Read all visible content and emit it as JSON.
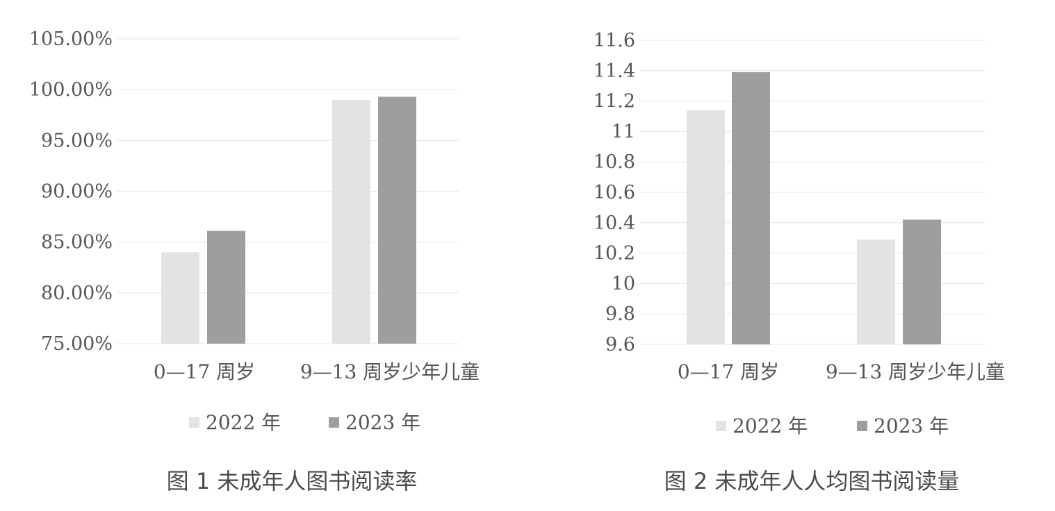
{
  "chart_data": [
    {
      "type": "bar",
      "title": "图 1 未成年人图书阅读率",
      "categories": [
        "0—17 周岁",
        "9—13 周岁少年儿童"
      ],
      "series": [
        {
          "name": "2022 年",
          "values": [
            84.0,
            99.0
          ]
        },
        {
          "name": "2023 年",
          "values": [
            86.1,
            99.3
          ]
        }
      ],
      "ylim": [
        75,
        105
      ],
      "yticks": [
        "75.00%",
        "80.00%",
        "85.00%",
        "90.00%",
        "95.00%",
        "100.00%",
        "105.00%"
      ],
      "grid": true,
      "legend": "bottom"
    },
    {
      "type": "bar",
      "title": "图 2 未成年人人均图书阅读量",
      "categories": [
        "0—17 周岁",
        "9—13 周岁少年儿童"
      ],
      "series": [
        {
          "name": "2022 年",
          "values": [
            11.14,
            10.29
          ]
        },
        {
          "name": "2023 年",
          "values": [
            11.39,
            10.42
          ]
        }
      ],
      "ylim": [
        9.6,
        11.6
      ],
      "yticks": [
        "9.6",
        "9.8",
        "10",
        "10.2",
        "10.4",
        "10.6",
        "10.8",
        "11",
        "11.2",
        "11.4",
        "11.6"
      ],
      "grid": true,
      "legend": "bottom"
    }
  ],
  "colors": {
    "series_2022": "#e3e3e3",
    "series_2023": "#9e9e9e"
  }
}
